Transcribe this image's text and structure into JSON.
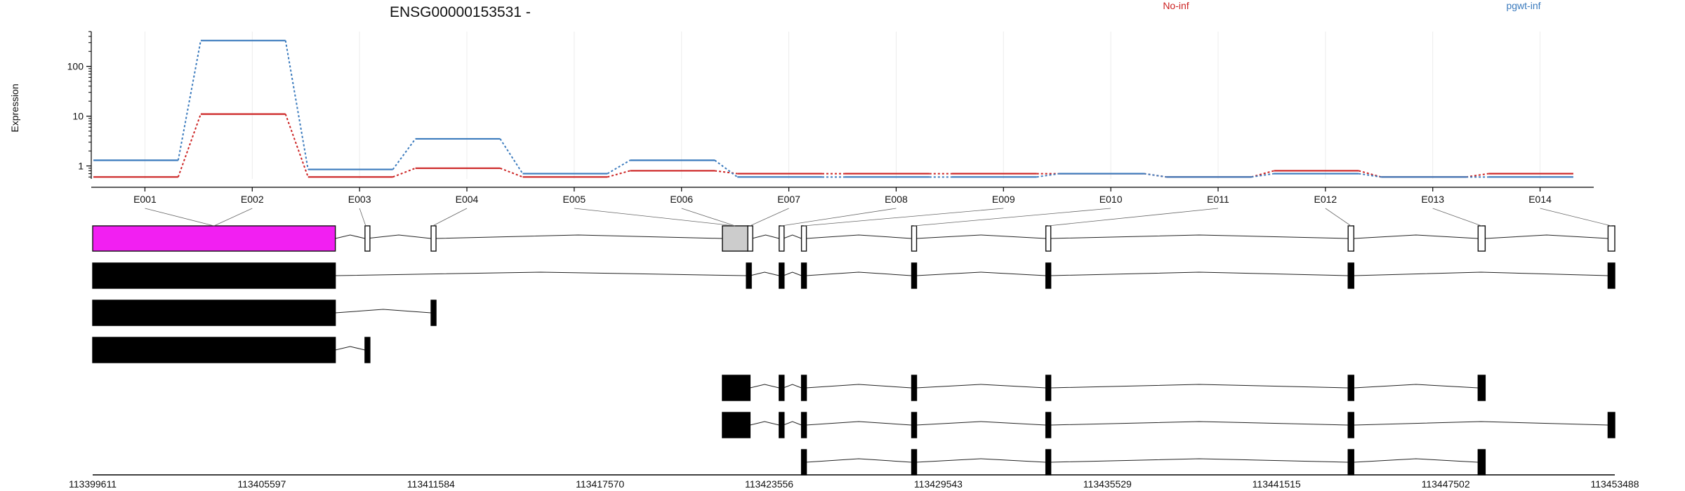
{
  "chart_data": {
    "type": "line",
    "title": "ENSG00000153531 -",
    "ylabel": "Expression",
    "yscale": "log",
    "ylim": [
      0.55,
      500
    ],
    "yticks": [
      1,
      10,
      100
    ],
    "grid": "vertical",
    "legend_position": "top",
    "categories": [
      "E001",
      "E002",
      "E003",
      "E004",
      "E005",
      "E006",
      "E007",
      "E008",
      "E009",
      "E010",
      "E011",
      "E012",
      "E013",
      "E014"
    ],
    "series": [
      {
        "name": "No-inf",
        "color": "#cc2222",
        "values": [
          0.6,
          11,
          0.6,
          0.9,
          0.6,
          0.8,
          0.7,
          0.7,
          0.7,
          0.7,
          0.6,
          0.8,
          0.6,
          0.7
        ]
      },
      {
        "name": "pgwt-inf",
        "color": "#3a7abd",
        "values": [
          1.3,
          330,
          0.85,
          3.5,
          0.7,
          1.3,
          0.6,
          0.6,
          0.6,
          0.7,
          0.6,
          0.7,
          0.6,
          0.6
        ]
      }
    ],
    "genomic_axis": {
      "range": [
        113399611,
        113453488
      ],
      "tick_labels": [
        "113399611",
        "113405597",
        "113411584",
        "113417570",
        "113423556",
        "113429543",
        "113435529",
        "113441515",
        "113447502",
        "113453488"
      ]
    },
    "exons": [
      {
        "id": "E001",
        "start": 113399611,
        "end": 113408200
      },
      {
        "id": "E002",
        "start": 113399611,
        "end": 113408200
      },
      {
        "id": "E003",
        "start": 113409250,
        "end": 113409300
      },
      {
        "id": "E004",
        "start": 113411590,
        "end": 113411700
      },
      {
        "id": "E005",
        "start": 113421900,
        "end": 113422800
      },
      {
        "id": "E006",
        "start": 113421900,
        "end": 113422800
      },
      {
        "id": "E007",
        "start": 113422800,
        "end": 113422950
      },
      {
        "id": "E008",
        "start": 113423910,
        "end": 113424060
      },
      {
        "id": "E009",
        "start": 113424700,
        "end": 113424850
      },
      {
        "id": "E010",
        "start": 113428600,
        "end": 113428750
      },
      {
        "id": "E011",
        "start": 113433350,
        "end": 113433500
      },
      {
        "id": "E012",
        "start": 113444050,
        "end": 113444250
      },
      {
        "id": "E013",
        "start": 113448650,
        "end": 113448900
      },
      {
        "id": "E014",
        "start": 113453250,
        "end": 113453488
      }
    ],
    "exon_colors": {
      "E001": "#f21ff2",
      "E002": "#f21ff2",
      "E005": "#cccccc",
      "E006": "#cccccc"
    },
    "transcripts": [
      {
        "exons": [
          [
            113399611,
            113408200
          ],
          [
            113422750,
            113422880
          ],
          [
            113423910,
            113424060
          ],
          [
            113424700,
            113424850
          ],
          [
            113428600,
            113428750
          ],
          [
            113433350,
            113433500
          ],
          [
            113444050,
            113444250
          ],
          [
            113453250,
            113453488
          ]
        ]
      },
      {
        "exons": [
          [
            113399611,
            113408200
          ],
          [
            113411590,
            113411700
          ]
        ]
      },
      {
        "exons": [
          [
            113399611,
            113408200
          ],
          [
            113409250,
            113409300
          ]
        ]
      },
      {
        "exons": [
          [
            113421900,
            113422880
          ],
          [
            113423910,
            113424060
          ],
          [
            113424700,
            113424850
          ],
          [
            113428600,
            113428750
          ],
          [
            113433350,
            113433500
          ],
          [
            113444050,
            113444250
          ],
          [
            113448650,
            113448900
          ]
        ]
      },
      {
        "exons": [
          [
            113421900,
            113422880
          ],
          [
            113423910,
            113424060
          ],
          [
            113424700,
            113424850
          ],
          [
            113428600,
            113428750
          ],
          [
            113433350,
            113433500
          ],
          [
            113444050,
            113444250
          ],
          [
            113453250,
            113453488
          ]
        ]
      },
      {
        "exons": [
          [
            113424700,
            113424850
          ],
          [
            113428600,
            113428750
          ],
          [
            113433350,
            113433500
          ],
          [
            113444050,
            113444250
          ],
          [
            113448650,
            113448900
          ]
        ]
      }
    ]
  }
}
